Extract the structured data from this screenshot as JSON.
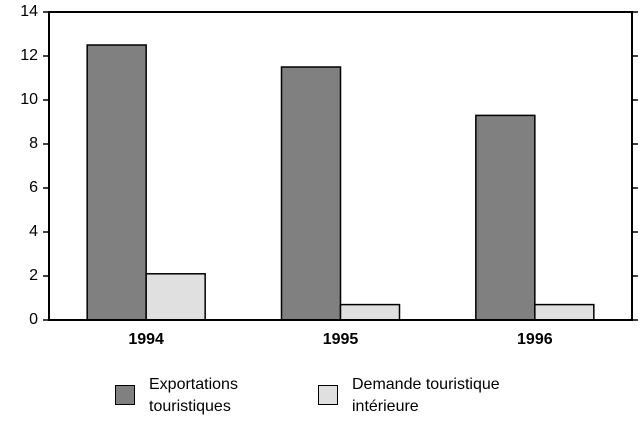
{
  "chart_data": {
    "type": "bar",
    "categories": [
      "1994",
      "1995",
      "1996"
    ],
    "series": [
      {
        "name": "Exportations touristiques",
        "color": "#808080",
        "values": [
          12.5,
          11.5,
          9.3
        ]
      },
      {
        "name": "Demande touristique intérieure",
        "color": "#e0e0e0",
        "values": [
          2.1,
          0.7,
          0.7
        ]
      }
    ],
    "ylim": [
      0,
      14
    ],
    "yticks": [
      0,
      2,
      4,
      6,
      8,
      10,
      12,
      14
    ]
  }
}
